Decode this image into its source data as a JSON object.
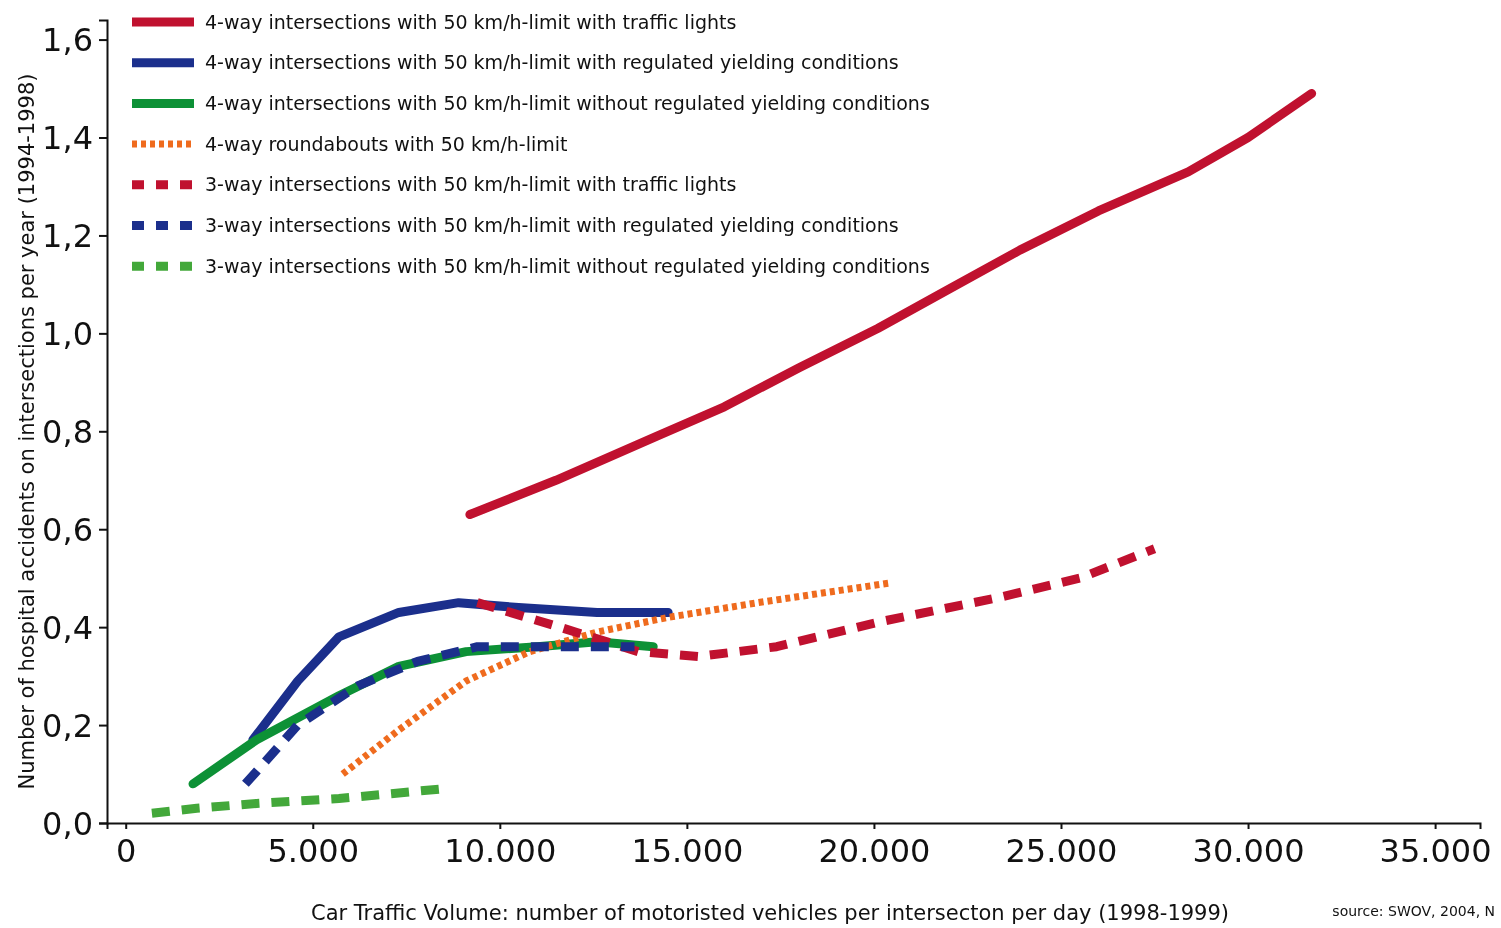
{
  "chart_data": {
    "type": "line",
    "xlabel": "Car Traffic Volume: number of motoristed vehicles per intersecton per day (1998-1999)",
    "ylabel": "Number of hospital accidents on intersections per year (1994-1998)",
    "xlim": [
      -500,
      36200
    ],
    "ylim": [
      0,
      1.64
    ],
    "xticks": [
      0,
      {
        "value": 5000,
        "label": "5.000"
      },
      {
        "value": 10000,
        "label": "10.000"
      },
      {
        "value": 15000,
        "label": "15.000"
      },
      {
        "value": 20000,
        "label": "20.000"
      },
      {
        "value": 25000,
        "label": "25.000"
      },
      {
        "value": 30000,
        "label": "30.000"
      },
      {
        "value": 35000,
        "label": "35.000"
      }
    ],
    "yticks": [
      {
        "value": 0,
        "label": "0,0"
      },
      {
        "value": 0.2,
        "label": "0,2"
      },
      {
        "value": 0.4,
        "label": "0,4"
      },
      {
        "value": 0.6,
        "label": "0,6"
      },
      {
        "value": 0.8,
        "label": "0,8"
      },
      {
        "value": 1.0,
        "label": "1,0"
      },
      {
        "value": 1.2,
        "label": "1,2"
      },
      {
        "value": 1.4,
        "label": "1,4"
      },
      {
        "value": 1.6,
        "label": "1,6"
      }
    ],
    "grid": false,
    "legend": "top left",
    "marker": "none",
    "annotations": [
      "source: SWOV, 2004, N"
    ],
    "series": [
      {
        "name": "4-way intersections with 50 km/h-limit with traffic lights",
        "color": "#c0112f",
        "line_style": "solid",
        "x": [
          9200,
          11500,
          14200,
          16000,
          18000,
          20100,
          22000,
          23900,
          26000,
          28400,
          30000,
          31700
        ],
        "values": [
          0.63,
          0.7,
          0.79,
          0.85,
          0.93,
          1.01,
          1.09,
          1.17,
          1.25,
          1.33,
          1.4,
          1.49
        ]
      },
      {
        "name": "4-way intersections with 50 km/h-limit with regulated yielding conditions",
        "color": "#1b2f8c",
        "line_style": "solid",
        "x": [
          3400,
          4600,
          5700,
          7300,
          8900,
          10500,
          12600,
          14500
        ],
        "values": [
          0.17,
          0.29,
          0.38,
          0.43,
          0.45,
          0.44,
          0.43,
          0.43
        ]
      },
      {
        "name": "4-way intersections with 50 km/h-limit without regulated yielding conditions",
        "color": "#0d9136",
        "line_style": "solid",
        "x": [
          1800,
          3500,
          5700,
          7300,
          9100,
          11000,
          12600,
          14100
        ],
        "values": [
          0.08,
          0.17,
          0.26,
          0.32,
          0.35,
          0.36,
          0.37,
          0.36
        ]
      },
      {
        "name": "4-way roundabouts with 50 km/h-limit",
        "color": "#ef6b1e",
        "line_style": "dotted",
        "x": [
          5800,
          7300,
          9100,
          10800,
          12600,
          14500,
          16900,
          20400
        ],
        "values": [
          0.1,
          0.19,
          0.29,
          0.35,
          0.39,
          0.42,
          0.45,
          0.49
        ]
      },
      {
        "name": "3-way intersections with 50 km/h-limit with traffic lights",
        "color": "#c0112f",
        "line_style": "dashed",
        "x": [
          9400,
          11600,
          13700,
          15300,
          17400,
          20100,
          23300,
          25500,
          27500
        ],
        "values": [
          0.45,
          0.4,
          0.35,
          0.34,
          0.36,
          0.41,
          0.46,
          0.5,
          0.56
        ]
      },
      {
        "name": "3-way intersections with 50 km/h-limit with regulated yielding conditions",
        "color": "#1b2f8c",
        "line_style": "dashed",
        "x": [
          3200,
          4600,
          6200,
          7800,
          9400,
          11000,
          12600,
          13600
        ],
        "values": [
          0.08,
          0.2,
          0.28,
          0.33,
          0.36,
          0.36,
          0.36,
          0.36
        ]
      },
      {
        "name": "3-way intersections with 50 km/h-limit without regulated yielding conditions",
        "color": "#43a83a",
        "line_style": "dashed",
        "x": [
          700,
          1900,
          3500,
          5700,
          8500
        ],
        "values": [
          0.02,
          0.03,
          0.04,
          0.05,
          0.07
        ]
      }
    ]
  }
}
